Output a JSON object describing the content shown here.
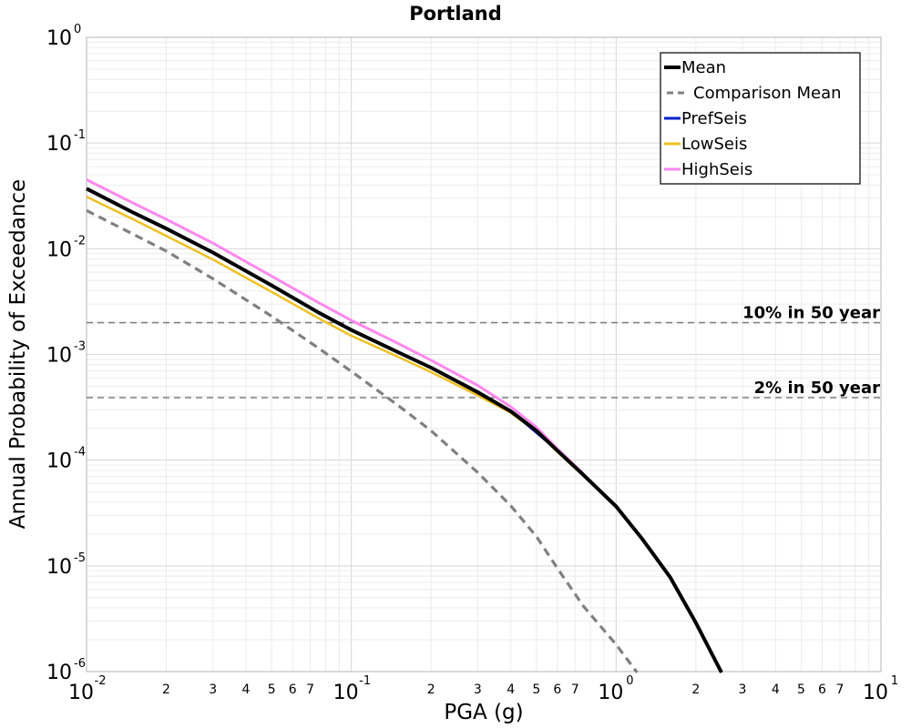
{
  "chart_data": {
    "type": "line",
    "title": "Portland",
    "xlabel": "PGA (g)",
    "ylabel": "Annual Probability of Exceedance",
    "x_scale": "log",
    "y_scale": "log",
    "xlim": [
      0.01,
      10
    ],
    "ylim": [
      1e-06,
      1
    ],
    "grid": true,
    "legend_position": "top-right",
    "x_major_ticks": [
      {
        "base": "10",
        "exp": "-2",
        "value": 0.01
      },
      {
        "base": "10",
        "exp": "-1",
        "value": 0.1
      },
      {
        "base": "10",
        "exp": "0",
        "value": 1
      },
      {
        "base": "10",
        "exp": "1",
        "value": 10
      }
    ],
    "x_minor_ticks": [
      "2",
      "3",
      "4",
      "5",
      "6",
      "7"
    ],
    "y_major_ticks": [
      {
        "base": "10",
        "exp": "0",
        "value": 1
      },
      {
        "base": "10",
        "exp": "-1",
        "value": 0.1
      },
      {
        "base": "10",
        "exp": "-2",
        "value": 0.01
      },
      {
        "base": "10",
        "exp": "-3",
        "value": 0.001
      },
      {
        "base": "10",
        "exp": "-4",
        "value": 0.0001
      },
      {
        "base": "10",
        "exp": "-5",
        "value": 1e-05
      },
      {
        "base": "10",
        "exp": "-6",
        "value": 1e-06
      }
    ],
    "series": [
      {
        "name": "Mean",
        "color": "#000000",
        "dash": "solid",
        "points": [
          [
            0.01,
            0.037
          ],
          [
            0.015,
            0.022
          ],
          [
            0.02,
            0.0155
          ],
          [
            0.03,
            0.0092
          ],
          [
            0.05,
            0.0045
          ],
          [
            0.075,
            0.0025
          ],
          [
            0.1,
            0.0017
          ],
          [
            0.15,
            0.00105
          ],
          [
            0.2,
            0.00075
          ],
          [
            0.3,
            0.00044
          ],
          [
            0.4,
            0.00029
          ],
          [
            0.5,
            0.00019
          ],
          [
            0.6,
            0.000123
          ],
          [
            0.75,
            7.3e-05
          ],
          [
            1.0,
            3.65e-05
          ],
          [
            1.25,
            1.82e-05
          ],
          [
            1.6,
            7.8e-06
          ],
          [
            2.0,
            2.9e-06
          ],
          [
            2.5,
            9.8e-07
          ]
        ]
      },
      {
        "name": "Comparison Mean",
        "color": "#808080",
        "dash": "dashed",
        "points": [
          [
            0.01,
            0.023
          ],
          [
            0.02,
            0.0095
          ],
          [
            0.03,
            0.0052
          ],
          [
            0.05,
            0.0023
          ],
          [
            0.075,
            0.00115
          ],
          [
            0.1,
            0.00069
          ],
          [
            0.15,
            0.00033
          ],
          [
            0.2,
            0.00019
          ],
          [
            0.3,
            7.65e-05
          ],
          [
            0.4,
            3.7e-05
          ],
          [
            0.5,
            1.9e-05
          ],
          [
            0.6,
            9.5e-06
          ],
          [
            0.75,
            4.2e-06
          ],
          [
            1.0,
            1.8e-06
          ],
          [
            1.2,
            9.8e-07
          ]
        ]
      },
      {
        "name": "PrefSeis",
        "color": "#0022cc",
        "dash": "solid",
        "points": [
          [
            0.1,
            0.0017
          ],
          [
            0.2,
            0.00075
          ],
          [
            0.4,
            0.00029
          ],
          [
            0.6,
            0.000123
          ],
          [
            0.75,
            7.3e-05
          ]
        ]
      },
      {
        "name": "LowSeis",
        "color": "#f0c020",
        "dash": "solid",
        "points": [
          [
            0.01,
            0.031
          ],
          [
            0.015,
            0.019
          ],
          [
            0.02,
            0.0132
          ],
          [
            0.03,
            0.0079
          ],
          [
            0.05,
            0.0039
          ],
          [
            0.075,
            0.0022
          ],
          [
            0.1,
            0.0015
          ],
          [
            0.15,
            0.00095
          ],
          [
            0.2,
            0.00068
          ],
          [
            0.3,
            0.00041
          ],
          [
            0.4,
            0.00028
          ],
          [
            0.5,
            0.000186
          ],
          [
            0.6,
            0.00012
          ],
          [
            0.75,
            7.15e-05
          ]
        ]
      },
      {
        "name": "HighSeis",
        "color": "#ff88ee",
        "dash": "solid",
        "points": [
          [
            0.01,
            0.045
          ],
          [
            0.015,
            0.027
          ],
          [
            0.02,
            0.019
          ],
          [
            0.03,
            0.0113
          ],
          [
            0.05,
            0.0055
          ],
          [
            0.075,
            0.0031
          ],
          [
            0.1,
            0.0021
          ],
          [
            0.15,
            0.00127
          ],
          [
            0.2,
            0.00088
          ],
          [
            0.3,
            0.00051
          ],
          [
            0.4,
            0.00032
          ],
          [
            0.5,
            0.000205
          ],
          [
            0.6,
            0.000128
          ],
          [
            0.75,
            7.5e-05
          ]
        ]
      }
    ],
    "reference_lines": [
      {
        "label": "10% in 50 year",
        "y": 0.002
      },
      {
        "label": "2% in 50 year",
        "y": 0.00039
      }
    ]
  }
}
